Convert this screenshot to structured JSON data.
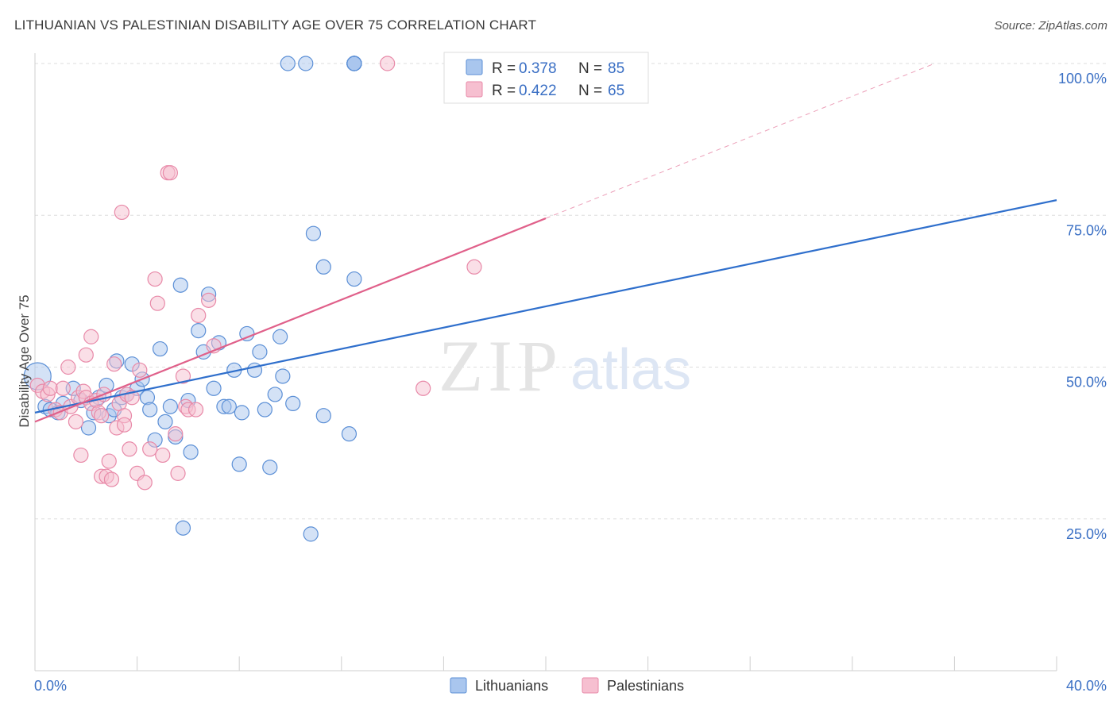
{
  "header": {
    "title": "LITHUANIAN VS PALESTINIAN DISABILITY AGE OVER 75 CORRELATION CHART",
    "source": "Source: ZipAtlas.com"
  },
  "watermark": {
    "zip": "ZIP",
    "atlas": "atlas"
  },
  "colors": {
    "lithuanians": "#5b8fd6",
    "lithuanians_fill": "#a9c6ee",
    "lithuanians_line": "#2f6fcc",
    "palestinians": "#e889a8",
    "palestinians_fill": "#f6bfd0",
    "palestinians_line": "#e0608a",
    "grid": "#dddddd",
    "tick_text": "#3a6fc4"
  },
  "legend": {
    "rows": [
      {
        "r_label": "R = ",
        "r_value": "0.378",
        "n_label": "N = ",
        "n_value": "85"
      },
      {
        "r_label": "R = ",
        "r_value": "0.422",
        "n_label": "N = ",
        "n_value": "65"
      }
    ]
  },
  "bottom_legend": [
    "Lithuanians",
    "Palestinians"
  ],
  "chart_data": {
    "type": "scatter",
    "title": "LITHUANIAN VS PALESTINIAN DISABILITY AGE OVER 75 CORRELATION CHART",
    "xlabel": "",
    "ylabel": "Disability Age Over 75",
    "xlim": [
      0,
      40
    ],
    "ylim": [
      0,
      100
    ],
    "x_tick_labels": [
      "0.0%",
      "40.0%"
    ],
    "y_ticks": [
      25,
      50,
      75,
      100
    ],
    "y_tick_labels": [
      "25.0%",
      "50.0%",
      "75.0%",
      "100.0%"
    ],
    "grid": true,
    "legend_position": "top-center",
    "series": [
      {
        "name": "Lithuanians",
        "R": 0.378,
        "N": 85,
        "trend": {
          "x": [
            0,
            40
          ],
          "y": [
            42.5,
            77.5
          ]
        },
        "points": [
          [
            0.1,
            48.5
          ],
          [
            0.4,
            43.5
          ],
          [
            0.6,
            43.0
          ],
          [
            0.9,
            42.5
          ],
          [
            1.1,
            44.0
          ],
          [
            1.5,
            46.5
          ],
          [
            1.8,
            44.5
          ],
          [
            2.1,
            40.0
          ],
          [
            2.3,
            42.5
          ],
          [
            2.5,
            45.0
          ],
          [
            2.8,
            47.0
          ],
          [
            2.9,
            42.0
          ],
          [
            3.1,
            43.0
          ],
          [
            3.2,
            51.0
          ],
          [
            3.4,
            45.0
          ],
          [
            3.6,
            45.5
          ],
          [
            3.8,
            50.5
          ],
          [
            4.0,
            46.5
          ],
          [
            4.2,
            48.0
          ],
          [
            4.4,
            45.0
          ],
          [
            4.5,
            43.0
          ],
          [
            4.7,
            38.0
          ],
          [
            4.9,
            53.0
          ],
          [
            5.1,
            41.0
          ],
          [
            5.3,
            43.5
          ],
          [
            5.5,
            38.5
          ],
          [
            5.7,
            63.5
          ],
          [
            5.8,
            23.5
          ],
          [
            6.0,
            44.5
          ],
          [
            6.1,
            36.0
          ],
          [
            6.4,
            56.0
          ],
          [
            6.6,
            52.5
          ],
          [
            6.8,
            62.0
          ],
          [
            7.0,
            46.5
          ],
          [
            7.2,
            54.0
          ],
          [
            7.4,
            43.5
          ],
          [
            7.6,
            43.5
          ],
          [
            7.8,
            49.5
          ],
          [
            8.0,
            34.0
          ],
          [
            8.1,
            42.5
          ],
          [
            8.3,
            55.5
          ],
          [
            8.6,
            49.5
          ],
          [
            8.8,
            52.5
          ],
          [
            9.0,
            43.0
          ],
          [
            9.2,
            33.5
          ],
          [
            9.4,
            45.5
          ],
          [
            9.6,
            55.0
          ],
          [
            9.7,
            48.5
          ],
          [
            10.1,
            44.0
          ],
          [
            9.9,
            100.0
          ],
          [
            10.6,
            100.0
          ],
          [
            10.8,
            22.5
          ],
          [
            10.9,
            72.0
          ],
          [
            11.3,
            66.5
          ],
          [
            11.3,
            42.0
          ],
          [
            12.3,
            39.0
          ],
          [
            12.5,
            64.5
          ],
          [
            12.5,
            100.0
          ],
          [
            12.5,
            100.0
          ],
          [
            12.5,
            100.0
          ],
          [
            12.5,
            100.0
          ],
          [
            12.5,
            100.0
          ],
          [
            12.5,
            100.0
          ],
          [
            12.5,
            100.0
          ],
          [
            12.5,
            100.0
          ],
          [
            12.5,
            100.0
          ],
          [
            12.5,
            100.0
          ],
          [
            12.5,
            100.0
          ],
          [
            12.5,
            100.0
          ],
          [
            12.5,
            100.0
          ],
          [
            12.5,
            100.0
          ]
        ]
      },
      {
        "name": "Palestinians",
        "R": 0.422,
        "N": 65,
        "trend": {
          "x": [
            0,
            20
          ],
          "y": [
            41.0,
            74.5
          ]
        },
        "points": [
          [
            0.1,
            47.0
          ],
          [
            0.3,
            46.0
          ],
          [
            0.5,
            45.5
          ],
          [
            0.6,
            46.5
          ],
          [
            0.8,
            43.0
          ],
          [
            1.0,
            42.5
          ],
          [
            1.1,
            46.5
          ],
          [
            1.3,
            50.0
          ],
          [
            1.4,
            43.5
          ],
          [
            1.6,
            41.0
          ],
          [
            1.7,
            45.0
          ],
          [
            1.8,
            35.5
          ],
          [
            1.9,
            46.0
          ],
          [
            2.0,
            45.0
          ],
          [
            2.0,
            52.0
          ],
          [
            2.2,
            44.0
          ],
          [
            2.2,
            55.0
          ],
          [
            2.4,
            44.5
          ],
          [
            2.5,
            42.5
          ],
          [
            2.6,
            32.0
          ],
          [
            2.6,
            42.0
          ],
          [
            2.7,
            45.5
          ],
          [
            2.8,
            32.0
          ],
          [
            2.9,
            34.5
          ],
          [
            3.0,
            31.5
          ],
          [
            3.1,
            50.5
          ],
          [
            3.2,
            40.0
          ],
          [
            3.3,
            44.0
          ],
          [
            3.4,
            75.5
          ],
          [
            3.5,
            42.0
          ],
          [
            3.5,
            40.5
          ],
          [
            3.6,
            45.5
          ],
          [
            3.7,
            36.5
          ],
          [
            3.8,
            45.0
          ],
          [
            4.0,
            32.5
          ],
          [
            4.1,
            49.5
          ],
          [
            4.3,
            31.0
          ],
          [
            4.5,
            36.5
          ],
          [
            4.7,
            64.5
          ],
          [
            4.8,
            60.5
          ],
          [
            5.0,
            35.5
          ],
          [
            5.2,
            82.0
          ],
          [
            5.3,
            82.0
          ],
          [
            5.5,
            39.0
          ],
          [
            5.6,
            32.5
          ],
          [
            5.8,
            48.5
          ],
          [
            5.9,
            43.5
          ],
          [
            6.0,
            43.0
          ],
          [
            6.3,
            43.0
          ],
          [
            6.4,
            58.5
          ],
          [
            6.8,
            61.0
          ],
          [
            7.0,
            53.5
          ],
          [
            13.8,
            100.0
          ],
          [
            15.2,
            46.5
          ],
          [
            17.2,
            66.5
          ]
        ]
      }
    ]
  }
}
